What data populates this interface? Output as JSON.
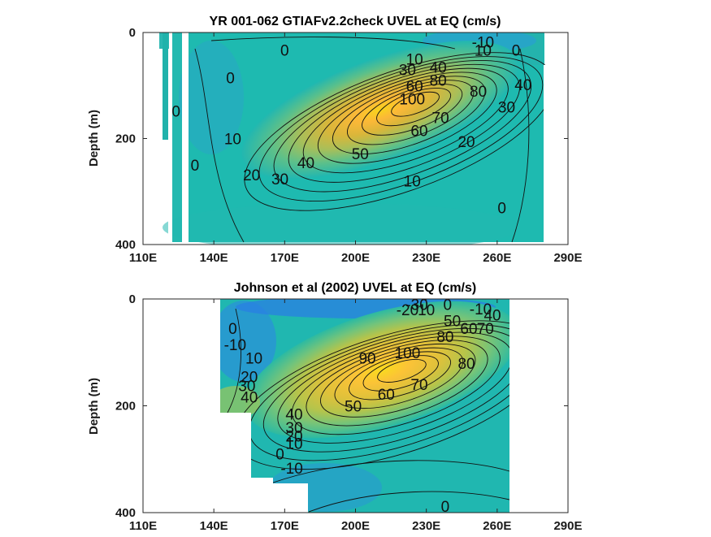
{
  "chart_data": [
    {
      "type": "heatmap",
      "style": "filled contour (parula colormap) with labeled black contour lines",
      "title": "YR 001-062 GTIAFv2.2check UVEL at EQ (cm/s)",
      "xlabel": "",
      "ylabel": "Depth (m)",
      "x_ticks": [
        "110E",
        "140E",
        "170E",
        "200E",
        "230E",
        "260E",
        "290E"
      ],
      "y_ticks": [
        "0",
        "200",
        "400"
      ],
      "xlim": [
        110,
        290
      ],
      "ylim": [
        0,
        400
      ],
      "y_reversed": true,
      "data_extent": {
        "lon": [
          118,
          278
        ],
        "depth": [
          0,
          395
        ]
      },
      "core": {
        "lon": 226,
        "depth": 130,
        "max_speed": 100
      },
      "contour_labels": [
        {
          "text": "0",
          "lon": 170,
          "depth": 33
        },
        {
          "text": "0",
          "lon": 147,
          "depth": 85
        },
        {
          "text": "0",
          "lon": 124,
          "depth": 148
        },
        {
          "text": "0",
          "lon": 132,
          "depth": 250
        },
        {
          "text": "0",
          "lon": 262,
          "depth": 330
        },
        {
          "text": "0",
          "lon": 268,
          "depth": 33
        },
        {
          "text": "-10",
          "lon": 254,
          "depth": 18
        },
        {
          "text": "10",
          "lon": 254,
          "depth": 33
        },
        {
          "text": "10",
          "lon": 148,
          "depth": 200
        },
        {
          "text": "20",
          "lon": 156,
          "depth": 268
        },
        {
          "text": "30",
          "lon": 168,
          "depth": 276
        },
        {
          "text": "40",
          "lon": 179,
          "depth": 245
        },
        {
          "text": "50",
          "lon": 202,
          "depth": 228
        },
        {
          "text": "60",
          "lon": 227,
          "depth": 185
        },
        {
          "text": "70",
          "lon": 236,
          "depth": 160
        },
        {
          "text": "80",
          "lon": 252,
          "depth": 110
        },
        {
          "text": "30",
          "lon": 264,
          "depth": 140
        },
        {
          "text": "40",
          "lon": 271,
          "depth": 98
        },
        {
          "text": "20",
          "lon": 247,
          "depth": 205
        },
        {
          "text": "10",
          "lon": 224,
          "depth": 280
        },
        {
          "text": "10",
          "lon": 225,
          "depth": 50
        },
        {
          "text": "30",
          "lon": 222,
          "depth": 70
        },
        {
          "text": "40",
          "lon": 235,
          "depth": 65
        },
        {
          "text": "60",
          "lon": 225,
          "depth": 100
        },
        {
          "text": "80",
          "lon": 235,
          "depth": 90
        },
        {
          "text": "100",
          "lon": 224,
          "depth": 125
        }
      ]
    },
    {
      "type": "heatmap",
      "style": "filled contour (parula colormap) with labeled black contour lines",
      "title": "Johnson et al (2002) UVEL at EQ (cm/s)",
      "xlabel": "",
      "ylabel": "Depth (m)",
      "x_ticks": [
        "110E",
        "140E",
        "170E",
        "200E",
        "230E",
        "260E",
        "290E"
      ],
      "y_ticks": [
        "0",
        "200",
        "400"
      ],
      "xlim": [
        110,
        290
      ],
      "ylim": [
        0,
        400
      ],
      "y_reversed": true,
      "data_extent": {
        "lon": [
          143,
          265
        ],
        "depth": [
          0,
          400
        ]
      },
      "core": {
        "lon": 220,
        "depth": 130,
        "max_speed": 100
      },
      "contour_labels": [
        {
          "text": "-30",
          "lon": 226,
          "depth": 10
        },
        {
          "text": "-20",
          "lon": 222,
          "depth": 20
        },
        {
          "text": "-10",
          "lon": 253,
          "depth": 18
        },
        {
          "text": "10",
          "lon": 230,
          "depth": 20
        },
        {
          "text": "0",
          "lon": 239,
          "depth": 10
        },
        {
          "text": "50",
          "lon": 241,
          "depth": 40
        },
        {
          "text": "40",
          "lon": 258,
          "depth": 30
        },
        {
          "text": "60",
          "lon": 248,
          "depth": 55
        },
        {
          "text": "70",
          "lon": 255,
          "depth": 55
        },
        {
          "text": "80",
          "lon": 238,
          "depth": 70
        },
        {
          "text": "0",
          "lon": 148,
          "depth": 55
        },
        {
          "text": "-10",
          "lon": 149,
          "depth": 85
        },
        {
          "text": "10",
          "lon": 157,
          "depth": 110
        },
        {
          "text": "20",
          "lon": 155,
          "depth": 145
        },
        {
          "text": "30",
          "lon": 154,
          "depth": 162
        },
        {
          "text": "40",
          "lon": 155,
          "depth": 183
        },
        {
          "text": "90",
          "lon": 205,
          "depth": 110
        },
        {
          "text": "100",
          "lon": 222,
          "depth": 100
        },
        {
          "text": "70",
          "lon": 227,
          "depth": 160
        },
        {
          "text": "60",
          "lon": 213,
          "depth": 178
        },
        {
          "text": "80",
          "lon": 247,
          "depth": 120
        },
        {
          "text": "50",
          "lon": 199,
          "depth": 200
        },
        {
          "text": "40",
          "lon": 174,
          "depth": 215
        },
        {
          "text": "30",
          "lon": 174,
          "depth": 240
        },
        {
          "text": "20",
          "lon": 174,
          "depth": 256
        },
        {
          "text": "10",
          "lon": 174,
          "depth": 270
        },
        {
          "text": "0",
          "lon": 168,
          "depth": 290
        },
        {
          "text": "-10",
          "lon": 173,
          "depth": 316
        },
        {
          "text": "0",
          "lon": 238,
          "depth": 388
        }
      ]
    }
  ]
}
